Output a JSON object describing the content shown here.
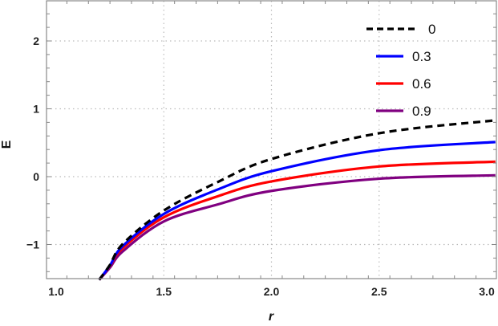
{
  "chart_data": {
    "type": "line",
    "title": "",
    "xlabel": "r",
    "ylabel": "E",
    "xlim": [
      0.91,
      3.04
    ],
    "ylim": [
      -1.52,
      2.6
    ],
    "xticks": [
      1.0,
      1.5,
      2.0,
      2.5,
      3.0
    ],
    "xtick_labels": [
      "1.0",
      "1.5",
      "2.0",
      "2.5",
      "3.0"
    ],
    "yticks": [
      -1,
      0,
      1,
      2
    ],
    "ytick_labels": [
      "−1",
      "0",
      "1",
      "2"
    ],
    "grid": true,
    "grid_style": "dotted",
    "legend_position": "upper-right-inside",
    "x": [
      1.2,
      1.25,
      1.31,
      1.5,
      1.75,
      2.0,
      2.5,
      3.04
    ],
    "series": [
      {
        "name": "0",
        "color": "#000000",
        "style": "dashed",
        "values": [
          -1.52,
          -1.3,
          -0.99,
          -0.5,
          -0.08,
          0.26,
          0.64,
          0.83
        ]
      },
      {
        "name": "0.3",
        "color": "#0000ff",
        "style": "solid",
        "values": [
          -1.52,
          -1.31,
          -1.02,
          -0.55,
          -0.19,
          0.08,
          0.39,
          0.51
        ]
      },
      {
        "name": "0.6",
        "color": "#ff0000",
        "style": "solid",
        "values": [
          -1.52,
          -1.32,
          -1.05,
          -0.6,
          -0.29,
          -0.07,
          0.15,
          0.22
        ]
      },
      {
        "name": "0.9",
        "color": "#800080",
        "style": "solid",
        "values": [
          -1.52,
          -1.34,
          -1.1,
          -0.66,
          -0.41,
          -0.21,
          -0.03,
          0.02
        ]
      }
    ]
  }
}
